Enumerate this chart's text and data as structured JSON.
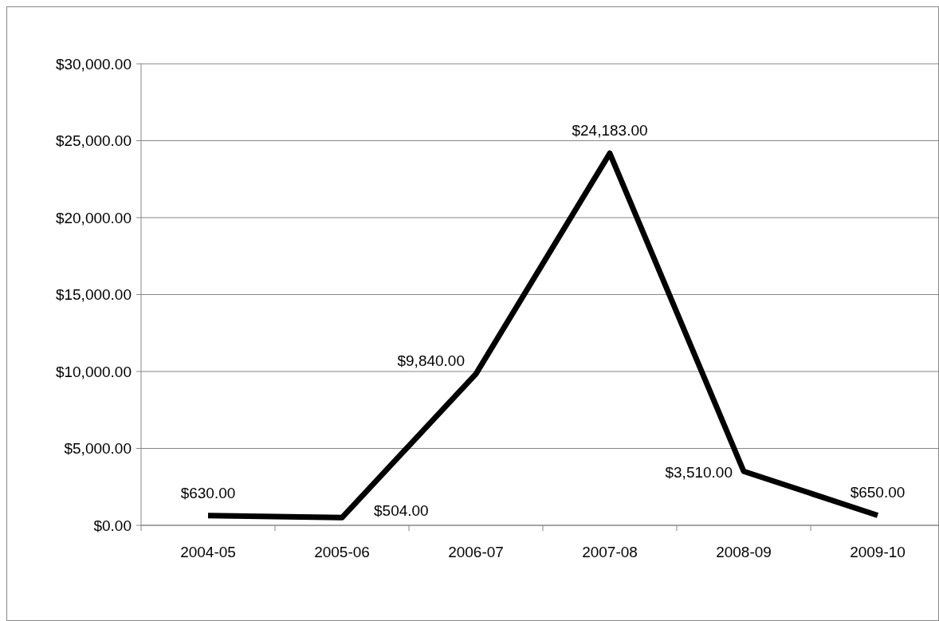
{
  "chart_data": {
    "type": "line",
    "categories": [
      "2004-05",
      "2005-06",
      "2006-07",
      "2007-08",
      "2008-09",
      "2009-10"
    ],
    "series": [
      {
        "color": "#000000",
        "values": [
          630,
          504,
          9840,
          24183,
          3510,
          650
        ]
      }
    ],
    "ylim": [
      0,
      30000
    ],
    "yticks": [
      {
        "value": 0,
        "label": "$0.00"
      },
      {
        "value": 5000,
        "label": "$5,000.00"
      },
      {
        "value": 10000,
        "label": "$10,000.00"
      },
      {
        "value": 15000,
        "label": "$15,000.00"
      },
      {
        "value": 20000,
        "label": "$20,000.00"
      },
      {
        "value": 25000,
        "label": "$25,000.00"
      },
      {
        "value": 30000,
        "label": "$30,000.00"
      }
    ],
    "grid": "y",
    "marker": "none",
    "line_style": "solid",
    "value_labels": [
      [
        "$630.00",
        "$504.00",
        "$9,840.00",
        "$24,183.00",
        "$3,510.00",
        "$650.00"
      ]
    ]
  }
}
